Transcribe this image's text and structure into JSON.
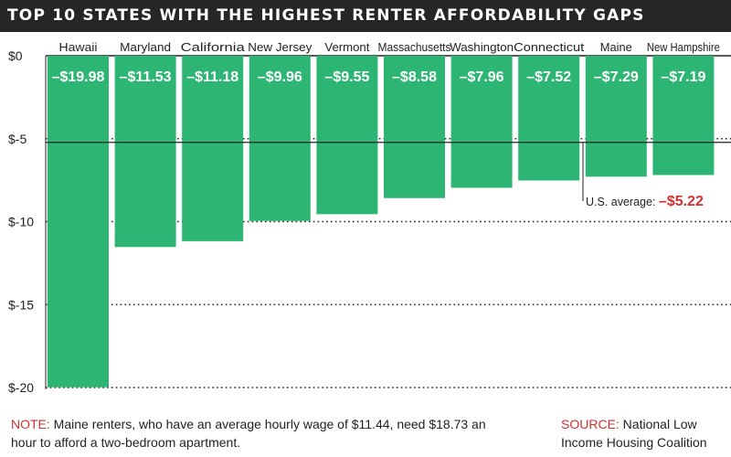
{
  "title": "TOP 10 STATES WITH THE HIGHEST RENTER AFFORDABILITY GAPS",
  "colors": {
    "bar": "#2db673",
    "highlight": "#d32f2f",
    "title_bg": "#262626"
  },
  "chart_data": {
    "type": "bar",
    "title": "TOP 10 STATES WITH THE HIGHEST RENTER AFFORDABILITY GAPS",
    "categories": [
      "Hawaii",
      "Maryland",
      "California",
      "New Jersey",
      "Vermont",
      "Massachusetts",
      "Washington",
      "Connecticut",
      "Maine",
      "New Hampshire"
    ],
    "values": [
      -19.98,
      -11.53,
      -11.18,
      -9.96,
      -9.55,
      -8.58,
      -7.96,
      -7.52,
      -7.29,
      -7.19
    ],
    "data_labels": [
      "–$19.98",
      "–$11.53",
      "–$11.18",
      "–$9.96",
      "–$9.55",
      "–$8.58",
      "–$7.96",
      "–$7.52",
      "–$7.29",
      "–$7.19"
    ],
    "y_ticks": [
      0,
      -5,
      -10,
      -15,
      -20
    ],
    "y_tick_labels": [
      "$0",
      "$-5",
      "$-10",
      "$-15",
      "$-20"
    ],
    "ylim": [
      -20,
      0
    ],
    "grid": true,
    "reference_line": {
      "value": -5.22,
      "label": "U.S. average:",
      "value_label": "–$5.22"
    }
  },
  "note": {
    "tag": "NOTE:",
    "text": " Maine renters, who have an average hourly wage of $11.44, need $18.73 an hour to afford a two-bedroom apartment."
  },
  "source": {
    "tag": "SOURCE:",
    "text": " National Low Income Housing Coalition"
  }
}
